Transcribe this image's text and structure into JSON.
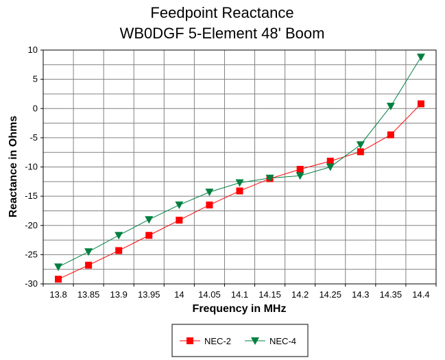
{
  "chart_data": {
    "type": "line",
    "title": "Feedpoint Reactance",
    "subtitle": "WB0DGF 5-Element 48' Boom",
    "xlabel": "Frequency in MHz",
    "ylabel": "Reactance in Ohms",
    "categories": [
      "13.8",
      "13.85",
      "13.9",
      "13.95",
      "14",
      "14.05",
      "14.1",
      "14.15",
      "14.2",
      "14.25",
      "14.3",
      "14.35",
      "14.4"
    ],
    "ylim": [
      -30,
      10
    ],
    "yticks": [
      "10",
      "5",
      "0",
      "-5",
      "-10",
      "-15",
      "-20",
      "-25",
      "-30"
    ],
    "grid": true,
    "legend": "bottom",
    "series": [
      {
        "name": "NEC-2",
        "color": "#ff0000",
        "marker": "square",
        "values": [
          -29.2,
          -26.8,
          -24.3,
          -21.7,
          -19.1,
          -16.5,
          -14.1,
          -12.0,
          -10.4,
          -9.0,
          -7.4,
          -4.5,
          0.8
        ]
      },
      {
        "name": "NEC-4",
        "color": "#008040",
        "marker": "triangle-down",
        "values": [
          -27.1,
          -24.5,
          -21.7,
          -19.0,
          -16.5,
          -14.3,
          -12.7,
          -11.9,
          -11.5,
          -10.0,
          -6.2,
          0.4,
          8.8
        ]
      }
    ]
  }
}
